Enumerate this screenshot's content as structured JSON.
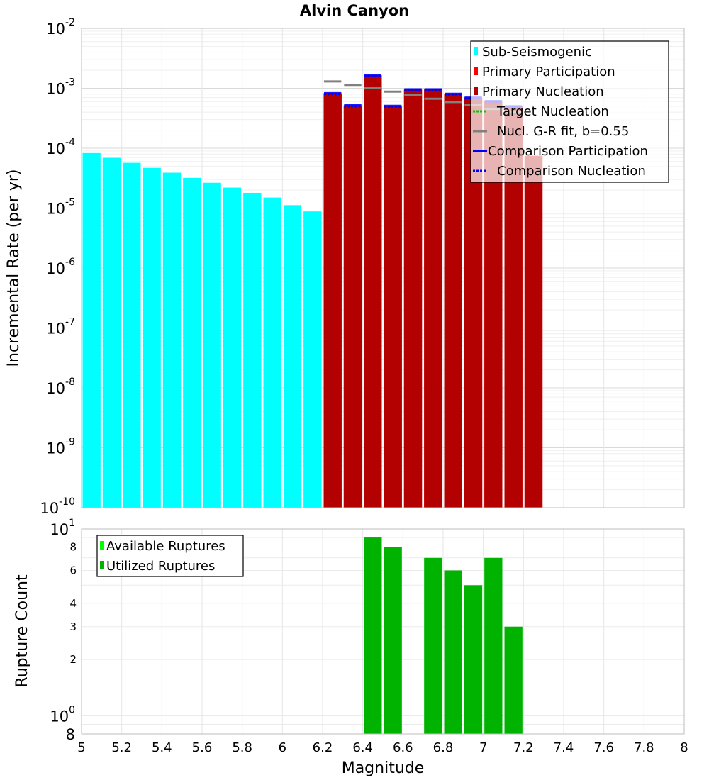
{
  "chart_data": [
    {
      "type": "bar",
      "title": "Alvin Canyon",
      "xlabel": "",
      "ylabel": "Incremental Rate (per yr)",
      "xlim": [
        5,
        8
      ],
      "y_scale": "log",
      "ylim": [
        1e-10,
        0.01
      ],
      "ytick_labels": [
        {
          "base": "10",
          "exp": "-10"
        },
        {
          "base": "10",
          "exp": "-9"
        },
        {
          "base": "10",
          "exp": "-8"
        },
        {
          "base": "10",
          "exp": "-7"
        },
        {
          "base": "10",
          "exp": "-6"
        },
        {
          "base": "10",
          "exp": "-5"
        },
        {
          "base": "10",
          "exp": "-4"
        },
        {
          "base": "10",
          "exp": "-3"
        },
        {
          "base": "10",
          "exp": "-2"
        }
      ],
      "bin_width": 0.1,
      "series": [
        {
          "name": "Sub-Seismogenic",
          "kind": "bar",
          "color": "#00ffff",
          "x": [
            5.05,
            5.15,
            5.25,
            5.35,
            5.45,
            5.55,
            5.65,
            5.75,
            5.85,
            5.95,
            6.05,
            6.15
          ],
          "values": [
            8.3e-05,
            6.9e-05,
            5.7e-05,
            4.7e-05,
            3.9e-05,
            3.2e-05,
            2.65e-05,
            2.2e-05,
            1.8e-05,
            1.5e-05,
            1.12e-05,
            8.8e-06
          ]
        },
        {
          "name": "Primary Participation",
          "kind": "bar",
          "color": "#ff0000",
          "x": [
            6.25,
            6.35,
            6.45,
            6.55,
            6.65,
            6.75,
            6.85,
            6.95,
            7.05,
            7.15,
            7.25
          ],
          "values": [
            0.00083,
            0.00052,
            0.00165,
            0.00051,
            0.00096,
            0.00096,
            0.00081,
            0.0007,
            0.00061,
            0.0005,
            7.5e-05
          ]
        },
        {
          "name": "Primary Nucleation",
          "kind": "bar",
          "color": "#b30000",
          "x": [
            6.25,
            6.35,
            6.45,
            6.55,
            6.65,
            6.75,
            6.85,
            6.95,
            7.05,
            7.15,
            7.25
          ],
          "values": [
            0.0008,
            0.0005,
            0.0016,
            0.00049,
            0.00093,
            0.00093,
            0.00079,
            0.00068,
            0.00059,
            0.00048,
            7.3e-05
          ]
        },
        {
          "name": "Target Nucleation",
          "kind": "dash",
          "color": "#00cc00",
          "x": [],
          "values": []
        },
        {
          "name": "Nucl. G-R fit, b=0.55",
          "kind": "dash",
          "color": "#808080",
          "x": [
            6.25,
            6.35,
            6.45,
            6.55,
            6.65,
            6.75,
            6.85,
            6.95,
            7.05,
            7.15
          ],
          "values": [
            0.0013,
            0.00114,
            0.001,
            0.00088,
            0.00077,
            0.00067,
            0.00059,
            0.00052,
            0.00045,
            0.0004
          ]
        },
        {
          "name": "Comparison Participation",
          "kind": "dash",
          "color": "#0000ff",
          "x": [
            6.25,
            6.35,
            6.45,
            6.55,
            6.65,
            6.75,
            6.85,
            6.95,
            7.05,
            7.15
          ],
          "values": [
            0.00083,
            0.00052,
            0.00165,
            0.00051,
            0.00096,
            0.00096,
            0.00081,
            0.0007,
            0.00061,
            0.0005
          ]
        },
        {
          "name": "Comparison Nucleation",
          "kind": "dash",
          "color": "#0000ff",
          "x": [
            6.25,
            6.35,
            6.45,
            6.55,
            6.65,
            6.75,
            6.85,
            6.95,
            7.05,
            7.15
          ],
          "values": [
            0.0008,
            0.0005,
            0.0016,
            0.00049,
            0.00093,
            0.00093,
            0.00079,
            0.00068,
            0.00059,
            0.00048
          ]
        }
      ],
      "legend": "top-right"
    },
    {
      "type": "bar",
      "title": "",
      "xlabel": "Magnitude",
      "ylabel": "Rupture Count",
      "xlim": [
        5,
        8
      ],
      "xticks": [
        "5",
        "5.2",
        "5.4",
        "5.6",
        "5.8",
        "6",
        "6.2",
        "6.4",
        "6.6",
        "6.8",
        "7",
        "7.2",
        "7.4",
        "7.6",
        "7.8",
        "8"
      ],
      "y_scale": "log",
      "ylim": [
        0.8,
        10
      ],
      "ytick_labels": [
        {
          "value": 0.8,
          "label": "8",
          "exp": ""
        },
        {
          "value": 1,
          "label": "10",
          "exp": "0"
        },
        {
          "value": 2,
          "label": "2",
          "exp": ""
        },
        {
          "value": 3,
          "label": "3",
          "exp": ""
        },
        {
          "value": 4,
          "label": "4",
          "exp": ""
        },
        {
          "value": 6,
          "label": "6",
          "exp": ""
        },
        {
          "value": 8,
          "label": "8",
          "exp": ""
        },
        {
          "value": 10,
          "label": "10",
          "exp": "1"
        }
      ],
      "bin_width": 0.1,
      "series": [
        {
          "name": "Available Ruptures",
          "kind": "bar",
          "color": "#00ff00",
          "x": [],
          "values": []
        },
        {
          "name": "Utilized Ruptures",
          "kind": "bar",
          "color": "#00b300",
          "x": [
            6.45,
            6.55,
            6.75,
            6.85,
            6.95,
            7.05,
            7.15
          ],
          "values": [
            9,
            8,
            7,
            6,
            5,
            7,
            3
          ]
        }
      ],
      "legend": "top-left"
    }
  ]
}
